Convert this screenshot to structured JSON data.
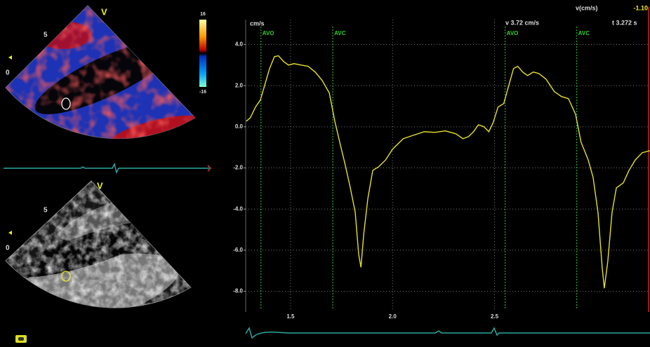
{
  "chart_data": {
    "type": "line",
    "y_label": "cm/s",
    "readout_v": "v 3.72 cm/s",
    "readout_t": "t 3.272 s",
    "cursor_label": "v(cm/s)",
    "cursor_value": "-1.10",
    "x": [
      1.283,
      1.303,
      1.328,
      1.352,
      1.372,
      1.397,
      1.421,
      1.441,
      1.466,
      1.49,
      1.517,
      1.552,
      1.586,
      1.621,
      1.655,
      1.69,
      1.717,
      1.741,
      1.766,
      1.793,
      1.817,
      1.834,
      1.845,
      1.859,
      1.879,
      1.903,
      1.931,
      1.966,
      2.0,
      2.052,
      2.103,
      2.155,
      2.207,
      2.259,
      2.31,
      2.345,
      2.372,
      2.397,
      2.421,
      2.448,
      2.472,
      2.493,
      2.517,
      2.545,
      2.569,
      2.593,
      2.614,
      2.638,
      2.662,
      2.69,
      2.717,
      2.752,
      2.793,
      2.828,
      2.862,
      2.897,
      2.924,
      2.959,
      2.983,
      3.007,
      3.028,
      3.038,
      3.055,
      3.076,
      3.097,
      3.131,
      3.159,
      3.19,
      3.224,
      3.262
    ],
    "series": [
      {
        "color": "#e6df2a",
        "values": [
          0.27,
          0.44,
          0.96,
          1.3,
          1.98,
          2.83,
          3.41,
          3.45,
          3.17,
          3.0,
          3.07,
          3.0,
          2.94,
          2.66,
          2.25,
          1.64,
          0.27,
          -0.75,
          -1.77,
          -2.97,
          -4.16,
          -6.21,
          -6.83,
          -5.19,
          -3.48,
          -2.12,
          -1.95,
          -1.61,
          -1.09,
          -0.58,
          -0.41,
          -0.24,
          -0.27,
          -0.2,
          -0.34,
          -0.58,
          -0.48,
          -0.24,
          0.1,
          0.0,
          -0.24,
          0.2,
          0.96,
          1.13,
          1.98,
          2.83,
          2.94,
          2.66,
          2.49,
          2.66,
          2.59,
          2.32,
          1.71,
          1.47,
          1.37,
          0.61,
          -0.75,
          -1.61,
          -2.46,
          -4.16,
          -6.89,
          -7.85,
          -6.55,
          -4.16,
          -2.97,
          -2.73,
          -2.12,
          -1.61,
          -1.26,
          -1.16
        ]
      }
    ],
    "xlim": [
      1.28,
      3.262
    ],
    "ylim": [
      -8.9,
      4.8
    ],
    "xticks": [
      {
        "value": 1.5,
        "label": "1.5"
      },
      {
        "value": 2.0,
        "label": "2.0"
      },
      {
        "value": 2.5,
        "label": "2.5"
      }
    ],
    "yticks": [
      {
        "value": 4,
        "label": "4.0"
      },
      {
        "value": 2,
        "label": "2.0"
      },
      {
        "value": 0,
        "label": "0.0"
      },
      {
        "value": -2,
        "label": "-2.0"
      },
      {
        "value": -4,
        "label": "-4.0"
      },
      {
        "value": -6,
        "label": "-6.0"
      },
      {
        "value": -8,
        "label": "-8.0"
      }
    ],
    "grid": true,
    "events": [
      {
        "label": "AVO",
        "x": 1.355
      },
      {
        "label": "AVC",
        "x": 1.707
      },
      {
        "label": "AVO",
        "x": 2.552
      },
      {
        "label": "AVC",
        "x": 2.903
      }
    ],
    "event_color": "#3c3"
  },
  "panels": {
    "color_scale_max": "16",
    "color_scale_min": "-16",
    "marker_top": "V",
    "marker_bottom": "V",
    "depth_top_5": "5",
    "depth_top_0": "0",
    "depth_bottom_5": "5",
    "depth_bottom_0": "0"
  }
}
